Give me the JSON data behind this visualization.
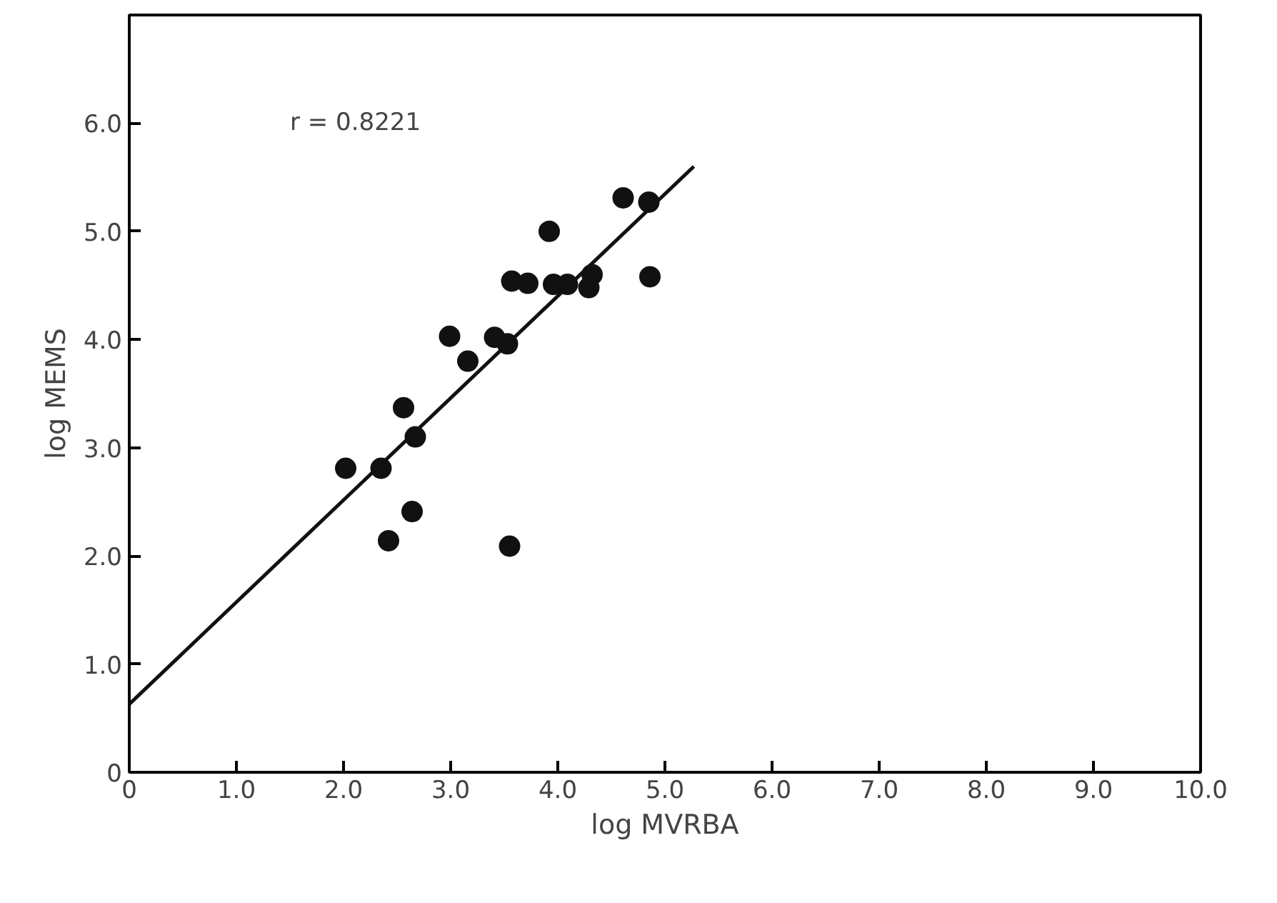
{
  "chart_data": {
    "type": "scatter",
    "xlabel": "log MVRBA",
    "ylabel": "log MEMS",
    "annotations": [
      "r = 0.8221"
    ],
    "xlim": [
      0,
      10
    ],
    "ylim": [
      0,
      7.0
    ],
    "xticks": [
      0,
      {
        "value": 1,
        "label": "1.0"
      },
      {
        "value": 2,
        "label": "2.0"
      },
      {
        "value": 3,
        "label": "3.0"
      },
      {
        "value": 4,
        "label": "4.0"
      },
      {
        "value": 5,
        "label": "5.0"
      },
      {
        "value": 6,
        "label": "6.0"
      },
      {
        "value": 7,
        "label": "7.0"
      },
      {
        "value": 8,
        "label": "8.0"
      },
      {
        "value": 9,
        "label": "9.0"
      },
      {
        "value": 10,
        "label": "10.0"
      }
    ],
    "yticks": [
      0,
      {
        "value": 1,
        "label": "1.0"
      },
      {
        "value": 2,
        "label": "2.0"
      },
      {
        "value": 3,
        "label": "3.0"
      },
      {
        "value": 4,
        "label": "4.0"
      },
      {
        "value": 5,
        "label": "5.0"
      },
      {
        "value": 6,
        "label": "6.0"
      }
    ],
    "grid": false,
    "series": [
      {
        "marker": "circle",
        "color": "#111111",
        "x": [
          2.02,
          2.35,
          2.42,
          2.56,
          2.67,
          2.64,
          2.99,
          3.16,
          3.41,
          3.53,
          3.55,
          3.57,
          3.72,
          3.92,
          3.96,
          4.09,
          4.29,
          4.32,
          4.61,
          4.85,
          4.86
        ],
        "values": [
          2.81,
          2.81,
          2.14,
          3.37,
          3.1,
          2.41,
          4.03,
          3.8,
          4.02,
          3.96,
          2.09,
          4.54,
          4.52,
          5.0,
          4.51,
          4.51,
          4.48,
          4.6,
          5.31,
          5.27,
          4.58
        ]
      },
      {
        "type": "line",
        "color": "#111111",
        "x": [
          0,
          5.27
        ],
        "values": [
          0.63,
          5.6
        ]
      }
    ]
  }
}
